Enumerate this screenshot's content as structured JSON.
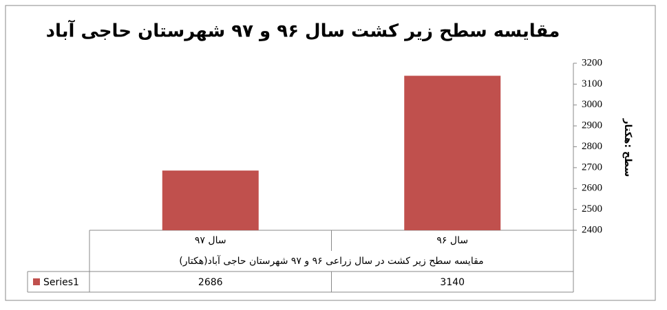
{
  "chart_data": {
    "type": "bar",
    "title": "مقایسه سطح زیر کشت سال ۹۶ و ۹۷ شهرستان حاجی آباد",
    "y_label": "سطح :هکتار",
    "group_label": "مقایسه سطح زیر کشت در سال زراعی ۹۶ و ۹۷ شهرستان حاجی آباد(هکتار)",
    "categories": [
      "سال ۹۷",
      "سال ۹۶"
    ],
    "series": [
      {
        "name": "Series1",
        "color": "#c0504d",
        "values": [
          2686,
          3140
        ]
      }
    ],
    "ylim": [
      2400,
      3200
    ],
    "yticks": [
      2400,
      2500,
      2600,
      2700,
      2800,
      2900,
      3000,
      3100,
      3200
    ],
    "grid": false
  }
}
